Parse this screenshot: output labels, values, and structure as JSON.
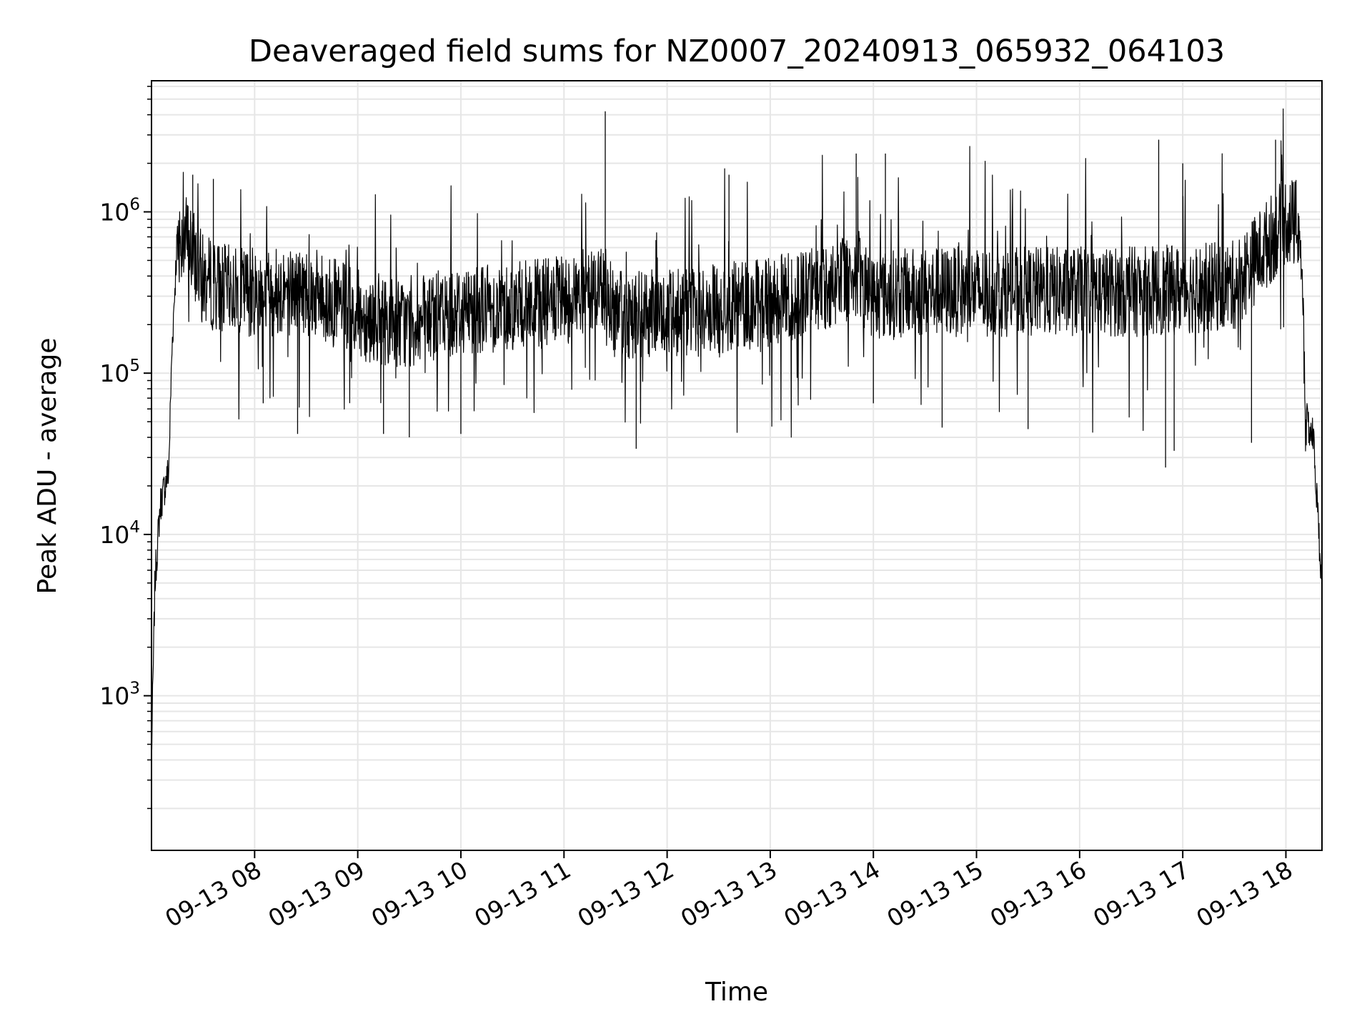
{
  "chart_data": {
    "type": "line",
    "title": "Deaveraged field sums for NZ0007_20240913_065932_064103",
    "xlabel": "Time",
    "ylabel": "Peak ADU - average",
    "y_scale": "log",
    "x_range": [
      "2024-09-13 07:00",
      "2024-09-13 18:21"
    ],
    "ylim": [
      110,
      6500000
    ],
    "grid": true,
    "line_color": "#000000",
    "grid_color": "#e6e6e6",
    "x_tick_labels": [
      "09-13 08",
      "09-13 09",
      "09-13 10",
      "09-13 11",
      "09-13 12",
      "09-13 13",
      "09-13 14",
      "09-13 15",
      "09-13 16",
      "09-13 17",
      "09-13 18"
    ],
    "x_tick_values": [
      "2024-09-13 08:00",
      "2024-09-13 09:00",
      "2024-09-13 10:00",
      "2024-09-13 11:00",
      "2024-09-13 12:00",
      "2024-09-13 13:00",
      "2024-09-13 14:00",
      "2024-09-13 15:00",
      "2024-09-13 16:00",
      "2024-09-13 17:00",
      "2024-09-13 18:00"
    ],
    "y_ticks": [
      {
        "value": 1000,
        "base": "10",
        "exp": "3"
      },
      {
        "value": 10000,
        "base": "10",
        "exp": "4"
      },
      {
        "value": 100000,
        "base": "10",
        "exp": "5"
      },
      {
        "value": 1000000,
        "base": "10",
        "exp": "6"
      }
    ],
    "series": [
      {
        "style": "noisy time series (approximate envelope)",
        "x": [
          "2024-09-13 07:00",
          "2024-09-13 07:02",
          "2024-09-13 07:05",
          "2024-09-13 07:10",
          "2024-09-13 07:12",
          "2024-09-13 07:15",
          "2024-09-13 07:20",
          "2024-09-13 07:30",
          "2024-09-13 07:45",
          "2024-09-13 08:00",
          "2024-09-13 08:30",
          "2024-09-13 09:00",
          "2024-09-13 09:30",
          "2024-09-13 10:00",
          "2024-09-13 10:30",
          "2024-09-13 11:00",
          "2024-09-13 11:24",
          "2024-09-13 11:30",
          "2024-09-13 12:00",
          "2024-09-13 12:30",
          "2024-09-13 13:00",
          "2024-09-13 13:30",
          "2024-09-13 13:50",
          "2024-09-13 14:00",
          "2024-09-13 14:30",
          "2024-09-13 15:00",
          "2024-09-13 15:30",
          "2024-09-13 16:00",
          "2024-09-13 16:30",
          "2024-09-13 17:00",
          "2024-09-13 17:30",
          "2024-09-13 17:50",
          "2024-09-13 18:00",
          "2024-09-13 18:08",
          "2024-09-13 18:12",
          "2024-09-13 18:16",
          "2024-09-13 18:20"
        ],
        "y": [
          400,
          5000,
          15000,
          25000,
          150000,
          700000,
          700000,
          380000,
          330000,
          320000,
          330000,
          230000,
          200000,
          250000,
          260000,
          280000,
          350000,
          230000,
          230000,
          250000,
          280000,
          330000,
          420000,
          300000,
          320000,
          320000,
          320000,
          320000,
          320000,
          330000,
          350000,
          650000,
          900000,
          800000,
          50000,
          40000,
          7000
        ]
      }
    ],
    "spikes": [
      {
        "x": "2024-09-13 11:24",
        "y": 4200000
      },
      {
        "x": "2024-09-13 16:46",
        "y": 2800000
      },
      {
        "x": "2024-09-13 17:54",
        "y": 2800000
      },
      {
        "x": "2024-09-13 13:50",
        "y": 2300000
      },
      {
        "x": "2024-09-13 14:07",
        "y": 2300000
      },
      {
        "x": "2024-09-13 17:00",
        "y": 2000000
      },
      {
        "x": "2024-09-13 12:36",
        "y": 1700000
      },
      {
        "x": "2024-09-13 07:24",
        "y": 1700000
      },
      {
        "x": "2024-09-13 07:36",
        "y": 1600000
      },
      {
        "x": "2024-09-13 11:42",
        "y": 34000
      },
      {
        "x": "2024-09-13 16:50",
        "y": 26000
      },
      {
        "x": "2024-09-13 16:55",
        "y": 33000
      },
      {
        "x": "2024-09-13 08:05",
        "y": 65000
      },
      {
        "x": "2024-09-13 08:25",
        "y": 42000
      },
      {
        "x": "2024-09-13 09:15",
        "y": 42000
      },
      {
        "x": "2024-09-13 09:30",
        "y": 40000
      },
      {
        "x": "2024-09-13 10:00",
        "y": 42000
      },
      {
        "x": "2024-09-13 14:00",
        "y": 65000
      },
      {
        "x": "2024-09-13 14:40",
        "y": 46000
      },
      {
        "x": "2024-09-13 15:30",
        "y": 45000
      },
      {
        "x": "2024-09-13 17:40",
        "y": 37000
      }
    ]
  }
}
